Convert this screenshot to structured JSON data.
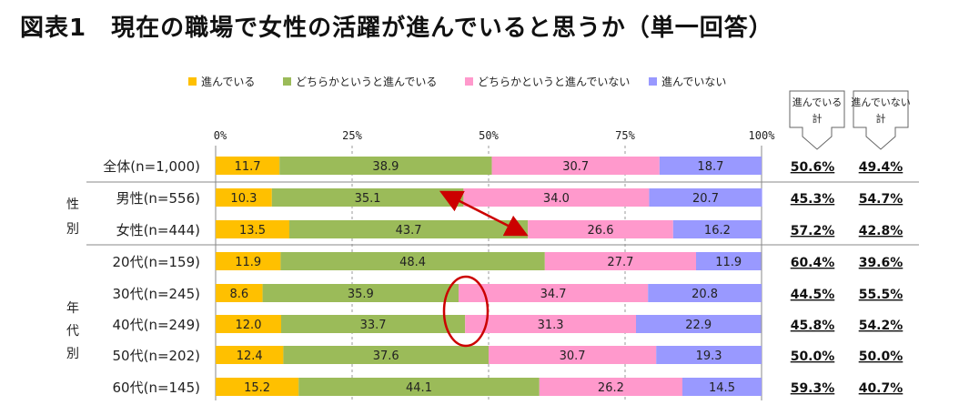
{
  "title": "図表1　現在の職場で女性の活躍が進んでいると思うか（単一回答）",
  "legend": [
    "進んでいる",
    "どちらかというと進んでいる",
    "どちらかというと進んでいない",
    "進んでいない"
  ],
  "summary_headers": [
    "進んでいる計",
    "進んでいない計"
  ],
  "chart_data": {
    "type": "bar",
    "orientation": "horizontal",
    "stacked": true,
    "unit": "%",
    "xlim": [
      0,
      100
    ],
    "x_ticks": [
      "0%",
      "25%",
      "50%",
      "75%",
      "100%"
    ],
    "categories": [
      "全体(n=1,000)",
      "男性(n=556)",
      "女性(n=444)",
      "20代(n=159)",
      "30代(n=245)",
      "40代(n=249)",
      "50代(n=202)",
      "60代(n=145)"
    ],
    "groups": [
      {
        "label": "性別",
        "rows": [
          1,
          2
        ]
      },
      {
        "label": "年代別",
        "rows": [
          3,
          4,
          5,
          6,
          7
        ]
      }
    ],
    "series": [
      {
        "name": "進んでいる",
        "color": "#FFC000",
        "values": [
          11.7,
          10.3,
          13.5,
          11.9,
          8.6,
          12.0,
          12.4,
          15.2
        ]
      },
      {
        "name": "どちらかというと進んでいる",
        "color": "#9BBB59",
        "values": [
          38.9,
          35.1,
          43.7,
          48.4,
          35.9,
          33.7,
          37.6,
          44.1
        ]
      },
      {
        "name": "どちらかというと進んでいない",
        "color": "#FF99CC",
        "values": [
          30.7,
          34.0,
          26.6,
          27.7,
          34.7,
          31.3,
          30.7,
          26.2
        ]
      },
      {
        "name": "進んでいない",
        "color": "#9999FF",
        "values": [
          18.7,
          20.7,
          16.2,
          11.9,
          20.8,
          22.9,
          19.3,
          14.5
        ]
      }
    ],
    "totals": {
      "進んでいる計": [
        "50.6%",
        "45.3%",
        "57.2%",
        "60.4%",
        "44.5%",
        "45.8%",
        "50.0%",
        "59.3%"
      ],
      "進んでいない計": [
        "49.4%",
        "54.7%",
        "42.8%",
        "39.6%",
        "55.5%",
        "54.2%",
        "50.0%",
        "40.7%"
      ]
    },
    "annotations": [
      {
        "type": "double-arrow",
        "color": "#CC0000",
        "between_rows": [
          1,
          2
        ],
        "note": "boundary of 進んでいる計"
      },
      {
        "type": "ellipse",
        "color": "#CC0000",
        "rows": [
          4,
          5
        ],
        "note": "boundary of 進んでいる計"
      }
    ]
  }
}
